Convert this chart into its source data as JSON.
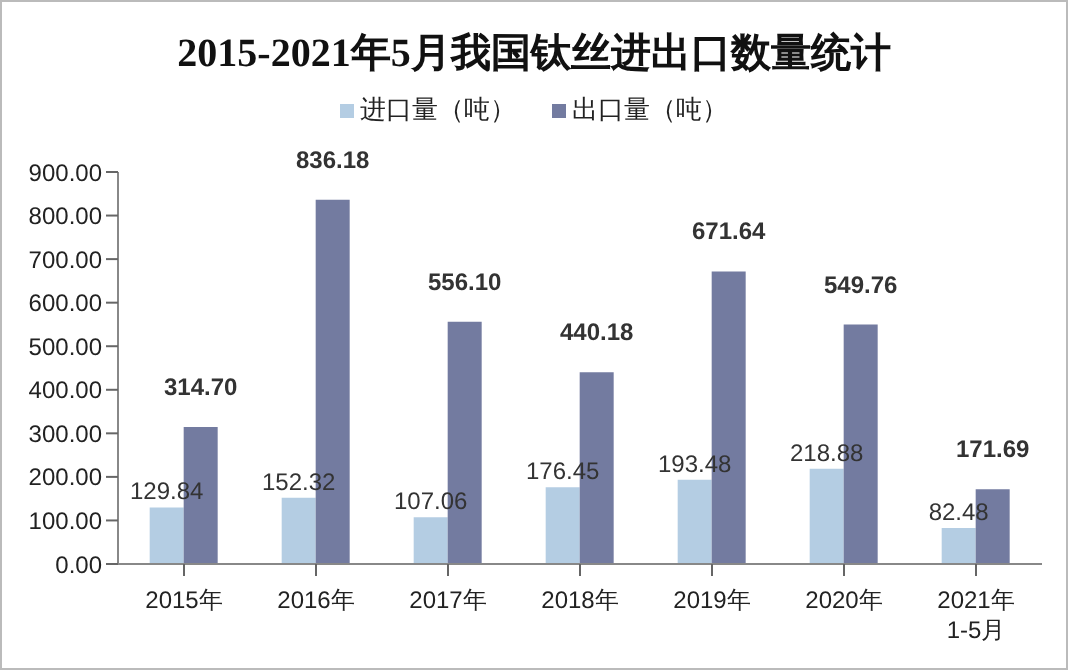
{
  "chart_data": {
    "type": "bar",
    "title": "2015-2021年5月我国钛丝进出口数量统计",
    "categories": [
      "2015年",
      "2016年",
      "2017年",
      "2018年",
      "2019年",
      "2020年",
      "2021年\n1-5月"
    ],
    "series": [
      {
        "name": "进口量（吨）",
        "color": "#b4cde3",
        "values": [
          129.84,
          152.32,
          107.06,
          176.45,
          193.48,
          218.88,
          82.48
        ],
        "value_labels": [
          "129.84",
          "152.32",
          "107.06",
          "176.45",
          "193.48",
          "218.88",
          "82.48"
        ]
      },
      {
        "name": "出口量（吨）",
        "color": "#737ba0",
        "values": [
          314.7,
          836.18,
          556.1,
          440.18,
          671.64,
          549.76,
          171.69
        ],
        "value_labels": [
          "314.70",
          "836.18",
          "556.10",
          "440.18",
          "671.64",
          "549.76",
          "171.69"
        ]
      }
    ],
    "ylim": [
      0,
      900
    ],
    "yticks": [
      {
        "value": 0,
        "label": "0.00"
      },
      {
        "value": 100,
        "label": "100.00"
      },
      {
        "value": 200,
        "label": "200.00"
      },
      {
        "value": 300,
        "label": "300.00"
      },
      {
        "value": 400,
        "label": "400.00"
      },
      {
        "value": 500,
        "label": "500.00"
      },
      {
        "value": 600,
        "label": "600.00"
      },
      {
        "value": 700,
        "label": "700.00"
      },
      {
        "value": 800,
        "label": "800.00"
      },
      {
        "value": 900,
        "label": "900.00"
      }
    ],
    "grid": false,
    "legend": "top"
  }
}
